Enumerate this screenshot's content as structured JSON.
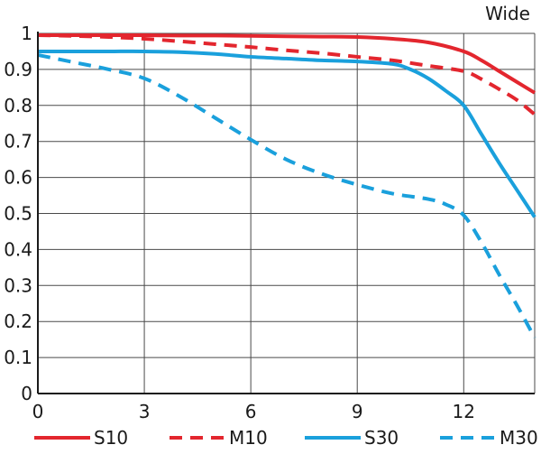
{
  "chart_data": {
    "type": "line",
    "title": "Wide",
    "xlabel": "",
    "ylabel": "",
    "xlim": [
      0,
      14
    ],
    "ylim": [
      0,
      1
    ],
    "x_ticks": [
      "0",
      "3",
      "6",
      "9",
      "12"
    ],
    "y_ticks": [
      "0",
      "0.1",
      "0.2",
      "0.3",
      "0.4",
      "0.5",
      "0.6",
      "0.7",
      "0.8",
      "0.9",
      "1"
    ],
    "grid": true,
    "legend_position": "bottom",
    "series": [
      {
        "name": "S10",
        "color": "#e3262e",
        "dash": "solid",
        "x": [
          0,
          1,
          2,
          3,
          4,
          5,
          6,
          7,
          8,
          9,
          10,
          11,
          12,
          12.5,
          13,
          13.5,
          14
        ],
        "y": [
          0.995,
          0.995,
          0.995,
          0.995,
          0.994,
          0.994,
          0.993,
          0.992,
          0.991,
          0.99,
          0.985,
          0.975,
          0.95,
          0.925,
          0.895,
          0.865,
          0.835
        ]
      },
      {
        "name": "M10",
        "color": "#e3262e",
        "dash": "dashed",
        "x": [
          0,
          1,
          2,
          3,
          4,
          5,
          6,
          7,
          8,
          9,
          10,
          11,
          12,
          12.5,
          13,
          13.5,
          14
        ],
        "y": [
          0.995,
          0.993,
          0.99,
          0.985,
          0.978,
          0.97,
          0.962,
          0.953,
          0.945,
          0.935,
          0.925,
          0.91,
          0.895,
          0.873,
          0.845,
          0.815,
          0.775
        ]
      },
      {
        "name": "S30",
        "color": "#1aa0dc",
        "dash": "solid",
        "x": [
          0,
          1,
          2,
          3,
          4,
          5,
          6,
          7,
          8,
          9,
          10,
          10.5,
          11,
          11.5,
          12,
          12.5,
          13,
          13.5,
          14
        ],
        "y": [
          0.95,
          0.95,
          0.95,
          0.95,
          0.948,
          0.943,
          0.935,
          0.93,
          0.925,
          0.922,
          0.915,
          0.9,
          0.875,
          0.84,
          0.8,
          0.72,
          0.64,
          0.565,
          0.49
        ]
      },
      {
        "name": "M30",
        "color": "#1aa0dc",
        "dash": "dashed",
        "x": [
          0,
          1,
          2,
          3,
          4,
          5,
          6,
          7,
          8,
          9,
          10,
          11,
          11.5,
          12,
          12.5,
          13,
          13.5,
          14
        ],
        "y": [
          0.94,
          0.92,
          0.9,
          0.875,
          0.825,
          0.765,
          0.705,
          0.65,
          0.61,
          0.58,
          0.555,
          0.54,
          0.525,
          0.495,
          0.42,
          0.33,
          0.245,
          0.155
        ]
      }
    ]
  }
}
